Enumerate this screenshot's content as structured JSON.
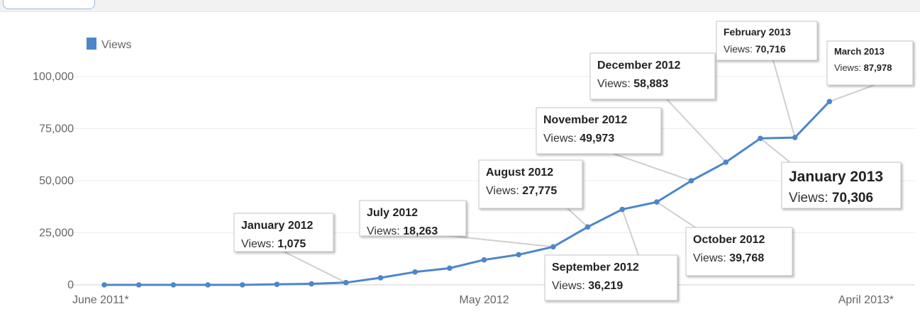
{
  "chart_data": {
    "type": "line",
    "series": [
      {
        "name": "Views",
        "color": "#4d86c9",
        "values": [
          0,
          0,
          0,
          0,
          0,
          250,
          500,
          1075,
          3400,
          6200,
          8000,
          12000,
          14500,
          18263,
          27775,
          36219,
          39768,
          49973,
          58883,
          70306,
          70716,
          87978
        ]
      }
    ],
    "x_labels": [
      {
        "index": 0,
        "text": "June 2011*"
      },
      {
        "index": 11,
        "text": "May 2012"
      },
      {
        "index": 22,
        "text": "April 2013*"
      }
    ],
    "x_range": [
      0,
      22
    ],
    "ylim": [
      0,
      100000
    ],
    "y_ticks": [
      {
        "value": 0,
        "text": "0"
      },
      {
        "value": 25000,
        "text": "25,000"
      },
      {
        "value": 50000,
        "text": "50,000"
      },
      {
        "value": 75000,
        "text": "75,000"
      },
      {
        "value": 100000,
        "text": "100,000"
      }
    ],
    "grid": true,
    "legend": {
      "position": "top-left",
      "entries": [
        "Views"
      ]
    },
    "annotations": [
      {
        "point": 7,
        "title": "January 2012",
        "label": "Views:",
        "value": "1,075"
      },
      {
        "point": 13,
        "title": "July 2012",
        "label": "Views:",
        "value": "18,263"
      },
      {
        "point": 14,
        "title": "August 2012",
        "label": "Views:",
        "value": "27,775"
      },
      {
        "point": 15,
        "title": "September 2012",
        "label": "Views:",
        "value": "36,219"
      },
      {
        "point": 16,
        "title": "October 2012",
        "label": "Views:",
        "value": "39,768"
      },
      {
        "point": 17,
        "title": "November 2012",
        "label": "Views:",
        "value": "49,973"
      },
      {
        "point": 18,
        "title": "December 2012",
        "label": "Views:",
        "value": "58,883"
      },
      {
        "point": 19,
        "title": "January 2013",
        "label": "Views:",
        "value": "70,306",
        "emphasis": true
      },
      {
        "point": 20,
        "title": "February 2013",
        "label": "Views:",
        "value": "70,716"
      },
      {
        "point": 21,
        "title": "March 2013",
        "label": "Views:",
        "value": "87,978"
      }
    ]
  }
}
